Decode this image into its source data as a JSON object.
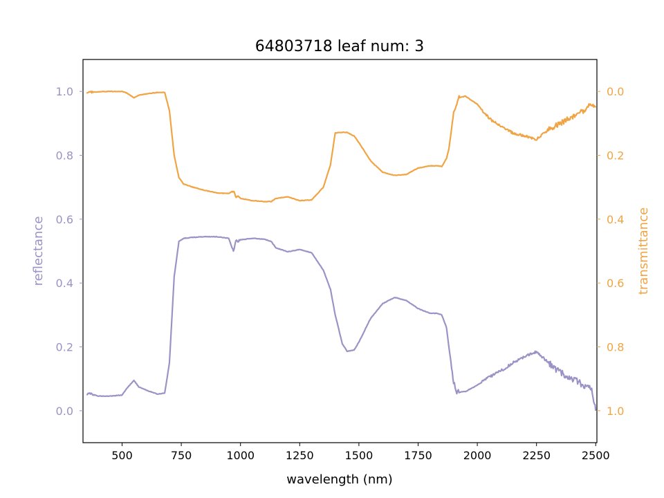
{
  "chart_data": {
    "type": "line",
    "title": "64803718 leaf num: 3",
    "xlabel": "wavelength (nm)",
    "ylabel": "reflectance",
    "y2label": "transmittance",
    "xlim": [
      335,
      2505
    ],
    "ylim": [
      -0.1,
      1.1
    ],
    "y2lim": [
      1.1,
      -0.1
    ],
    "y2_inverted": true,
    "grid": false,
    "x_ticks": [
      "500",
      "750",
      "1000",
      "1250",
      "1500",
      "1750",
      "2000",
      "2250",
      "2500"
    ],
    "y_ticks": [
      "0.0",
      "0.2",
      "0.4",
      "0.6",
      "0.8",
      "1.0"
    ],
    "y2_ticks": [
      "1.0",
      "0.8",
      "0.6",
      "0.4",
      "0.2",
      "0.0"
    ],
    "colors": {
      "reflectance": "#9b93c6",
      "transmittance": "#f0a444"
    },
    "series": [
      {
        "name": "reflectance",
        "axis": "left",
        "x": [
          350,
          360,
          400,
          450,
          500,
          520,
          550,
          570,
          600,
          650,
          680,
          700,
          720,
          740,
          760,
          800,
          850,
          900,
          950,
          970,
          980,
          1000,
          1050,
          1100,
          1130,
          1150,
          1200,
          1250,
          1300,
          1350,
          1380,
          1400,
          1430,
          1450,
          1480,
          1500,
          1550,
          1600,
          1650,
          1700,
          1750,
          1800,
          1830,
          1850,
          1870,
          1880,
          1900,
          1910,
          1920,
          1950,
          2000,
          2050,
          2100,
          2150,
          2200,
          2250,
          2300,
          2350,
          2400,
          2450,
          2480,
          2500
        ],
        "values": [
          0.05,
          0.055,
          0.046,
          0.046,
          0.049,
          0.07,
          0.095,
          0.075,
          0.065,
          0.052,
          0.055,
          0.15,
          0.42,
          0.53,
          0.54,
          0.543,
          0.545,
          0.545,
          0.54,
          0.5,
          0.53,
          0.535,
          0.54,
          0.537,
          0.53,
          0.51,
          0.498,
          0.505,
          0.495,
          0.44,
          0.38,
          0.3,
          0.21,
          0.186,
          0.19,
          0.215,
          0.29,
          0.335,
          0.355,
          0.345,
          0.32,
          0.305,
          0.305,
          0.3,
          0.26,
          0.2,
          0.09,
          0.06,
          0.058,
          0.06,
          0.08,
          0.105,
          0.125,
          0.15,
          0.17,
          0.185,
          0.15,
          0.12,
          0.1,
          0.08,
          0.075,
          0.0
        ]
      },
      {
        "name": "transmittance",
        "axis": "right",
        "x": [
          350,
          360,
          400,
          450,
          500,
          520,
          550,
          570,
          600,
          650,
          680,
          700,
          720,
          740,
          760,
          800,
          850,
          900,
          950,
          970,
          980,
          1000,
          1050,
          1100,
          1130,
          1150,
          1200,
          1250,
          1300,
          1350,
          1380,
          1400,
          1430,
          1450,
          1480,
          1500,
          1550,
          1600,
          1650,
          1700,
          1750,
          1800,
          1830,
          1850,
          1870,
          1880,
          1900,
          1910,
          1920,
          1950,
          2000,
          2050,
          2100,
          2150,
          2200,
          2250,
          2300,
          2350,
          2400,
          2450,
          2480,
          2500
        ],
        "values": [
          0.005,
          0.003,
          0.001,
          0.0,
          0.0,
          0.005,
          0.02,
          0.012,
          0.008,
          0.003,
          0.003,
          0.06,
          0.2,
          0.27,
          0.29,
          0.3,
          0.31,
          0.318,
          0.32,
          0.31,
          0.328,
          0.335,
          0.342,
          0.345,
          0.345,
          0.335,
          0.33,
          0.342,
          0.34,
          0.3,
          0.23,
          0.13,
          0.128,
          0.128,
          0.14,
          0.16,
          0.218,
          0.253,
          0.263,
          0.26,
          0.24,
          0.233,
          0.233,
          0.235,
          0.21,
          0.18,
          0.07,
          0.04,
          0.02,
          0.015,
          0.04,
          0.085,
          0.11,
          0.13,
          0.14,
          0.15,
          0.12,
          0.1,
          0.08,
          0.06,
          0.04,
          0.05
        ]
      }
    ]
  }
}
